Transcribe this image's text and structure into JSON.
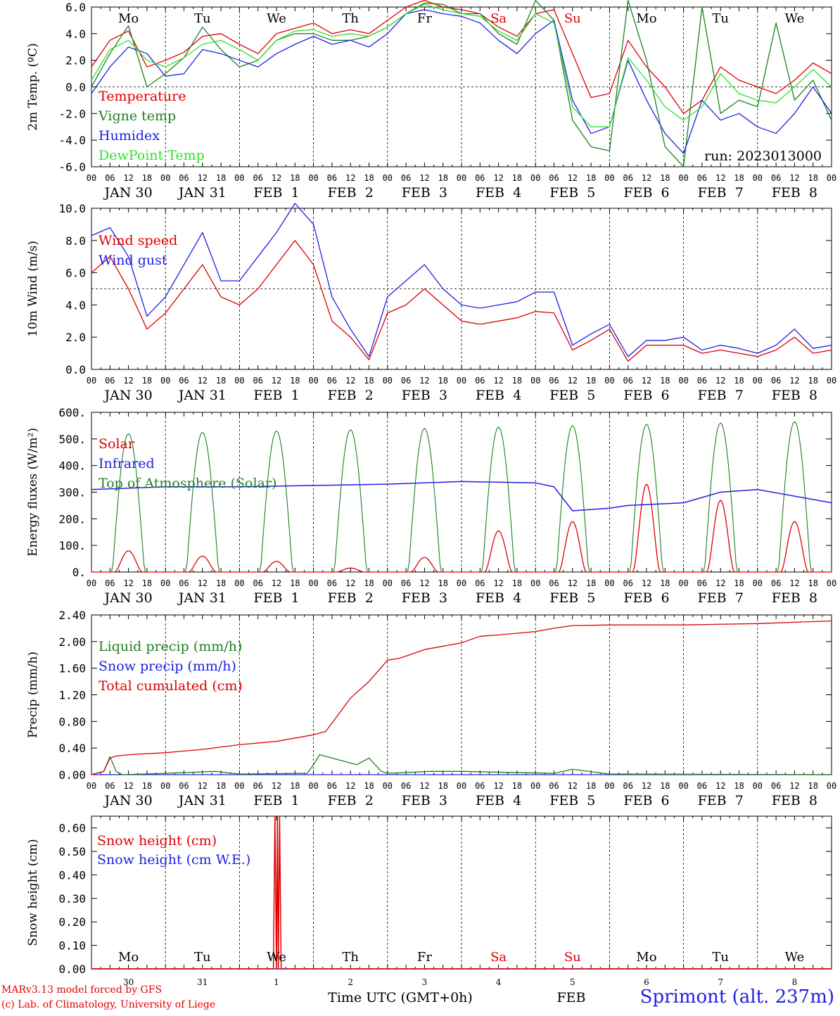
{
  "run_label": "run: 2023013000",
  "footer": {
    "model_line": "MARv3.13 model forced by GFS",
    "credit_line": "(c) Lab. of Climatology, University of Liege",
    "time_axis_label": "Time UTC (GMT+0h)",
    "month_label": "FEB",
    "station_title": "Sprimont (alt. 237m)"
  },
  "colors": {
    "red": "#e00000",
    "green": "#208020",
    "blue": "#2020e0",
    "lightgreen": "#30e030"
  },
  "time_axis": {
    "hour_ticks": [
      "00",
      "06",
      "12",
      "18"
    ],
    "end_tick": "00",
    "date_labels": [
      "JAN 30",
      "JAN 31",
      "FEB  1",
      "FEB  2",
      "FEB  3",
      "FEB  4",
      "FEB  5",
      "FEB  6",
      "FEB  7",
      "FEB  8"
    ],
    "weekday_labels": [
      "Mo",
      "Tu",
      "We",
      "Th",
      "Fr",
      "Sa",
      "Su",
      "Mo",
      "Tu",
      "We"
    ],
    "weekday_colors": [
      "#000000",
      "#000000",
      "#000000",
      "#000000",
      "#000000",
      "#e00000",
      "#e00000",
      "#000000",
      "#000000",
      "#000000"
    ],
    "day_numbers": [
      "30",
      "31",
      "1",
      "2",
      "3",
      "4",
      "5",
      "6",
      "7",
      "8"
    ]
  },
  "chart_data": [
    {
      "id": "temp",
      "type": "line",
      "ylabel": "2m Temp. (ºC)",
      "ylim": [
        -6,
        6
      ],
      "yticks": [
        "-6.0",
        "-4.0",
        "-2.0",
        "0.0",
        "2.0",
        "4.0",
        "6.0"
      ],
      "ytick_values": [
        -6,
        -4,
        -2,
        0,
        2,
        4,
        6
      ],
      "ref_line": 0,
      "legend": [
        "Temperature",
        "Vigne temp",
        "Humidex",
        "DewPoint Temp"
      ],
      "series": [
        {
          "name": "Temperature",
          "color": "#e00000",
          "x": [
            0,
            6,
            12,
            18,
            24,
            30,
            36,
            42,
            48,
            54,
            60,
            66,
            72,
            78,
            84,
            90,
            96,
            102,
            108,
            114,
            120,
            126,
            132,
            138,
            144,
            150,
            156,
            162,
            168,
            174,
            180,
            186,
            192,
            198,
            204,
            210,
            216,
            222,
            228,
            234,
            240
          ],
          "values": [
            1.5,
            3.5,
            4.2,
            1.5,
            2,
            2.6,
            3.8,
            4,
            3.2,
            2.5,
            4,
            4.4,
            4.8,
            4,
            4.3,
            4,
            5,
            6,
            6.5,
            6,
            5.8,
            5.5,
            4.5,
            3.8,
            5.5,
            5.8,
            2.5,
            -0.8,
            -0.5,
            3.5,
            1.5,
            0,
            -2,
            -1,
            1.5,
            0.5,
            0,
            -0.5,
            0.5,
            1.8,
            1
          ]
        },
        {
          "name": "Vigne temp",
          "color": "#208020",
          "x": [
            0,
            6,
            12,
            18,
            24,
            30,
            36,
            42,
            48,
            54,
            60,
            66,
            72,
            78,
            84,
            90,
            96,
            102,
            108,
            114,
            120,
            126,
            132,
            138,
            144,
            150,
            156,
            162,
            168,
            174,
            180,
            186,
            192,
            198,
            204,
            210,
            216,
            222,
            228,
            234,
            240
          ],
          "values": [
            0,
            2.5,
            4.6,
            0,
            1,
            2.2,
            4.5,
            2.8,
            1.5,
            2,
            3.5,
            4,
            4,
            3.5,
            3.5,
            3.8,
            4.5,
            5.5,
            6.3,
            6.2,
            5.5,
            5.5,
            4,
            3.2,
            6.5,
            5,
            -2.5,
            -4.5,
            -4.8,
            6.5,
            2,
            -4.5,
            -6,
            6,
            -2,
            -1,
            -1.5,
            4.8,
            -1,
            0.5,
            -2.5
          ]
        },
        {
          "name": "Humidex",
          "color": "#2020e0",
          "x": [
            0,
            6,
            12,
            18,
            24,
            30,
            36,
            42,
            48,
            54,
            60,
            66,
            72,
            78,
            84,
            90,
            96,
            102,
            108,
            114,
            120,
            126,
            132,
            138,
            144,
            150,
            156,
            162,
            168,
            174,
            180,
            186,
            192,
            198,
            204,
            210,
            216,
            222,
            228,
            234,
            240
          ],
          "values": [
            -0.5,
            1.5,
            3,
            2.5,
            0.8,
            1,
            2.8,
            2.5,
            2,
            1.5,
            2.5,
            3.2,
            3.8,
            3.2,
            3.5,
            3,
            4,
            5.5,
            5.8,
            5.5,
            5.3,
            4.8,
            3.5,
            2.5,
            4,
            5,
            -1,
            -3.5,
            -3,
            2,
            -1,
            -3.5,
            -5,
            -1,
            -2.5,
            -2,
            -3,
            -3.5,
            -2,
            0,
            -2
          ]
        },
        {
          "name": "DewPoint Temp",
          "color": "#30e030",
          "x": [
            0,
            6,
            12,
            18,
            24,
            30,
            36,
            42,
            48,
            54,
            60,
            66,
            72,
            78,
            84,
            90,
            96,
            102,
            108,
            114,
            120,
            126,
            132,
            138,
            144,
            150,
            156,
            162,
            168,
            174,
            180,
            186,
            192,
            198,
            204,
            210,
            216,
            222,
            228,
            234,
            240
          ],
          "values": [
            0.5,
            2.8,
            3.5,
            2,
            1.5,
            2.2,
            3.2,
            3.5,
            2.8,
            2,
            3.5,
            4.2,
            4.3,
            3.8,
            4,
            3.8,
            4.5,
            5.5,
            6.2,
            5.8,
            5.5,
            5.3,
            4.2,
            3.5,
            5.5,
            4.8,
            -1.5,
            -3,
            -3,
            2.2,
            0.5,
            -1.5,
            -2.5,
            -1.5,
            1,
            -0.5,
            -1,
            -1.2,
            0,
            1.3,
            0
          ]
        }
      ]
    },
    {
      "id": "wind",
      "type": "line",
      "ylabel": "10m Wind (m/s)",
      "ylim": [
        0,
        10
      ],
      "yticks": [
        "0.0",
        "2.0",
        "4.0",
        "6.0",
        "8.0",
        "10.0"
      ],
      "ytick_values": [
        0,
        2,
        4,
        6,
        8,
        10
      ],
      "ref_line": 5,
      "legend": [
        "Wind speed",
        "Wind gust"
      ],
      "series": [
        {
          "name": "Wind speed",
          "color": "#e00000",
          "x": [
            0,
            6,
            12,
            18,
            24,
            30,
            36,
            42,
            48,
            54,
            60,
            66,
            72,
            78,
            84,
            90,
            96,
            102,
            108,
            114,
            120,
            126,
            132,
            138,
            144,
            150,
            156,
            162,
            168,
            174,
            180,
            186,
            192,
            198,
            204,
            210,
            216,
            222,
            228,
            234,
            240
          ],
          "values": [
            6,
            7,
            5,
            2.5,
            3.5,
            5,
            6.5,
            4.5,
            4,
            5,
            6.5,
            8,
            6.5,
            3,
            2,
            0.6,
            3.5,
            4,
            5,
            4,
            3,
            2.8,
            3,
            3.2,
            3.6,
            3.5,
            1.2,
            1.8,
            2.5,
            0.5,
            1.5,
            1.5,
            1.5,
            1,
            1.2,
            1,
            0.8,
            1.2,
            2,
            1,
            1.2
          ]
        },
        {
          "name": "Wind gust",
          "color": "#2020e0",
          "x": [
            0,
            6,
            12,
            18,
            24,
            30,
            36,
            42,
            48,
            54,
            60,
            66,
            72,
            78,
            84,
            90,
            96,
            102,
            108,
            114,
            120,
            126,
            132,
            138,
            144,
            150,
            156,
            162,
            168,
            174,
            180,
            186,
            192,
            198,
            204,
            210,
            216,
            222,
            228,
            234,
            240
          ],
          "values": [
            8.3,
            8.8,
            7,
            3.3,
            4.5,
            6.5,
            8.5,
            5.5,
            5.5,
            7,
            8.5,
            10.3,
            9,
            4.5,
            2.5,
            0.8,
            4.5,
            5.5,
            6.5,
            5,
            4,
            3.8,
            4,
            4.2,
            4.8,
            4.8,
            1.5,
            2.2,
            2.8,
            0.8,
            1.8,
            1.8,
            2,
            1.2,
            1.5,
            1.3,
            1,
            1.5,
            2.5,
            1.3,
            1.5
          ]
        }
      ]
    },
    {
      "id": "energy",
      "type": "line",
      "ylabel": "Energy fluxes (W/m²)",
      "ylim": [
        0,
        600
      ],
      "yticks": [
        "0.",
        "100.",
        "200.",
        "300.",
        "400.",
        "500.",
        "600."
      ],
      "ytick_values": [
        0,
        100,
        200,
        300,
        400,
        500,
        600
      ],
      "legend": [
        "Solar",
        "Infrared",
        "Top of Atmosphere (Solar)"
      ],
      "toa_peaks": [
        520,
        525,
        530,
        535,
        540,
        545,
        550,
        555,
        560,
        565
      ],
      "solar_peaks": [
        80,
        60,
        40,
        15,
        55,
        155,
        190,
        330,
        270,
        190
      ],
      "infrared": {
        "x": [
          0,
          24,
          48,
          72,
          96,
          120,
          144,
          150,
          156,
          168,
          174,
          192,
          204,
          216,
          240
        ],
        "values": [
          310,
          320,
          320,
          325,
          330,
          340,
          335,
          320,
          230,
          240,
          250,
          260,
          300,
          310,
          260
        ]
      },
      "series_names": [
        "Solar",
        "Infrared",
        "Top of Atmosphere (Solar)"
      ]
    },
    {
      "id": "precip",
      "type": "line",
      "ylabel": "Precip (mm/h)",
      "ylim": [
        0,
        2.4
      ],
      "yticks": [
        "0.00",
        "0.40",
        "0.80",
        "1.20",
        "1.60",
        "2.00",
        "2.40"
      ],
      "ytick_values": [
        0,
        0.4,
        0.8,
        1.2,
        1.6,
        2.0,
        2.4
      ],
      "legend": [
        "Liquid precip (mm/h)",
        "Snow precip (mm/h)",
        "Total cumulated (cm)"
      ],
      "series": [
        {
          "name": "Total cumulated (cm)",
          "color": "#e00000",
          "x": [
            0,
            4,
            6,
            8,
            12,
            24,
            36,
            48,
            60,
            72,
            76,
            84,
            90,
            96,
            100,
            108,
            120,
            126,
            132,
            144,
            150,
            156,
            168,
            192,
            216,
            240
          ],
          "values": [
            0,
            0.05,
            0.25,
            0.28,
            0.3,
            0.33,
            0.38,
            0.45,
            0.5,
            0.6,
            0.65,
            1.15,
            1.4,
            1.72,
            1.75,
            1.88,
            1.98,
            2.08,
            2.1,
            2.15,
            2.2,
            2.24,
            2.25,
            2.25,
            2.27,
            2.31
          ]
        },
        {
          "name": "Liquid precip (mm/h)",
          "color": "#208020",
          "x": [
            0,
            4,
            6,
            8,
            10,
            24,
            40,
            48,
            70,
            72,
            74,
            78,
            82,
            86,
            90,
            94,
            96,
            110,
            120,
            150,
            156,
            168,
            240
          ],
          "values": [
            0,
            0.05,
            0.27,
            0.05,
            0,
            0.02,
            0.05,
            0.01,
            0.02,
            0.15,
            0.3,
            0.25,
            0.2,
            0.15,
            0.25,
            0.05,
            0.02,
            0.05,
            0.05,
            0.02,
            0.08,
            0.01,
            0
          ]
        },
        {
          "name": "Snow precip (mm/h)",
          "color": "#2020e0",
          "x": [
            0,
            240
          ],
          "values": [
            0,
            0
          ]
        }
      ]
    },
    {
      "id": "snow",
      "type": "line",
      "ylabel": "Snow height (cm)",
      "ylim": [
        0,
        0.65
      ],
      "yticks": [
        "0.00",
        "0.10",
        "0.20",
        "0.30",
        "0.40",
        "0.50",
        "0.60"
      ],
      "ytick_values": [
        0,
        0.1,
        0.2,
        0.3,
        0.4,
        0.5,
        0.6
      ],
      "legend": [
        "Snow height (cm)",
        "Snow height (cm W.E.)"
      ],
      "series": [
        {
          "name": "Snow height (cm)",
          "color": "#e00000",
          "x": [
            0,
            59,
            59.5,
            60,
            60.3,
            60.6,
            61,
            61.5,
            240
          ],
          "values": [
            0,
            0,
            0.65,
            0,
            0.65,
            0,
            0.65,
            0,
            0
          ]
        },
        {
          "name": "Snow height (cm W.E.)",
          "color": "#2020e0",
          "x": [
            0,
            240
          ],
          "values": [
            0,
            0
          ]
        }
      ]
    }
  ]
}
